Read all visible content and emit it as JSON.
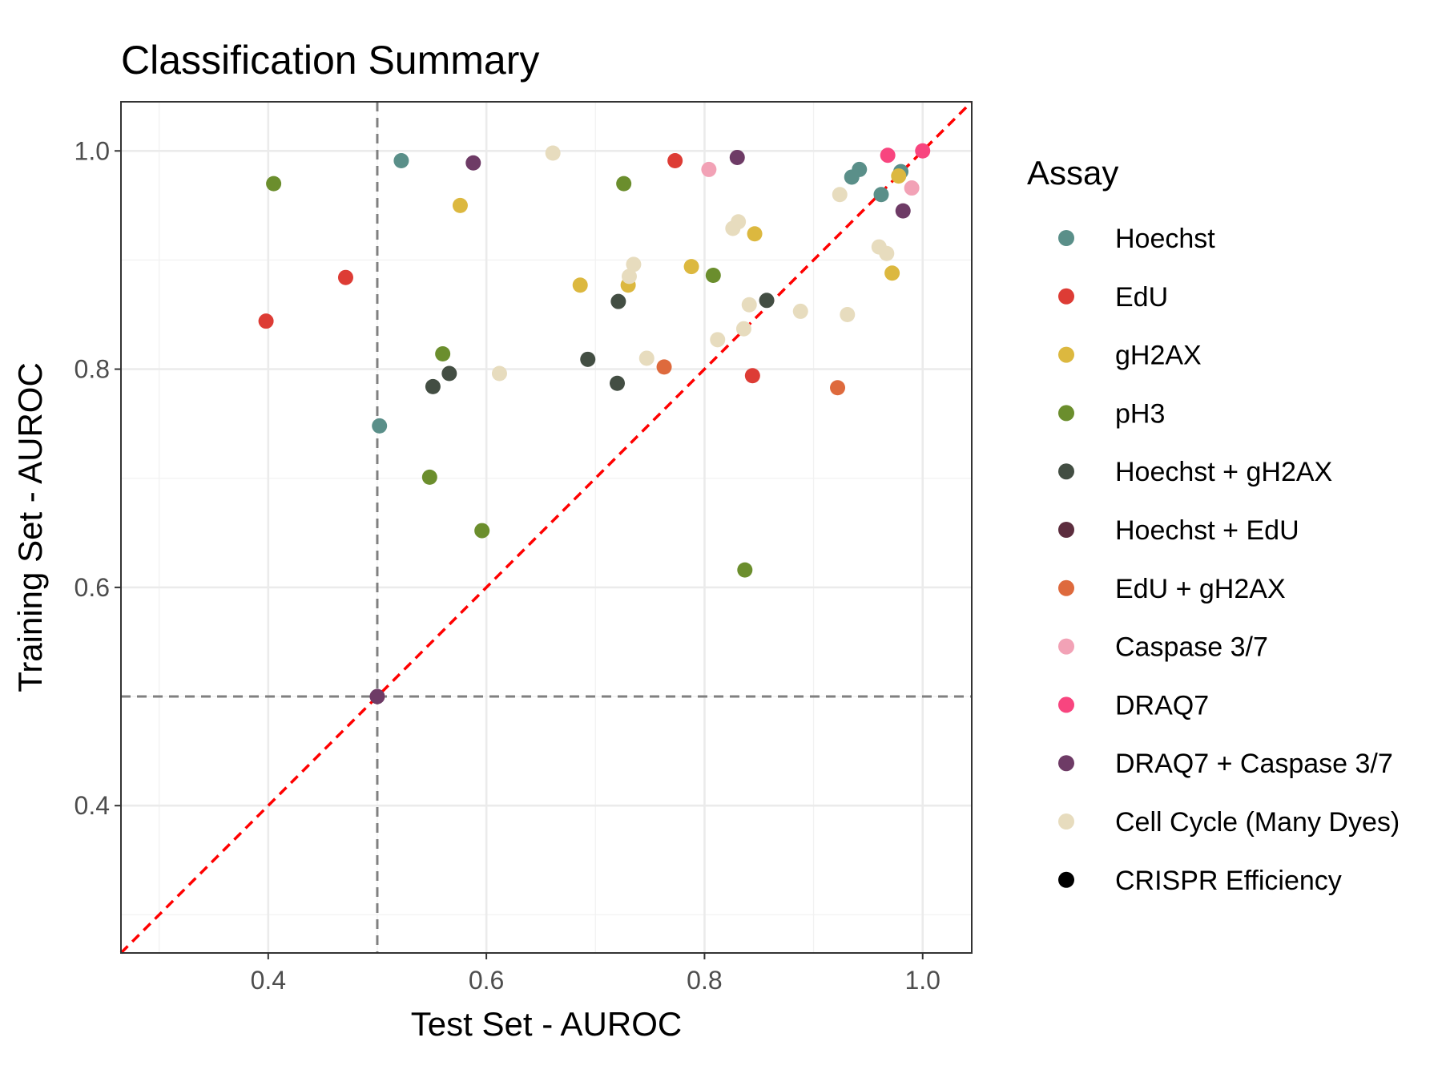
{
  "chart_data": {
    "type": "scatter",
    "title": "Classification Summary",
    "xlabel": "Test Set - AUROC",
    "ylabel": "Training Set - AUROC",
    "xlim": [
      0.265,
      1.045
    ],
    "ylim": [
      0.265,
      1.045
    ],
    "xticks": [
      0.4,
      0.6,
      0.8,
      1.0
    ],
    "xtick_labels": [
      "0.4",
      "0.6",
      "0.8",
      "1.0"
    ],
    "yticks": [
      0.4,
      0.6,
      0.8,
      1.0
    ],
    "ytick_labels": [
      "0.4",
      "0.6",
      "0.8",
      "1.0"
    ],
    "grid": true,
    "reference_lines": {
      "vertical_x": 0.5,
      "horizontal_y": 0.5,
      "diagonal": "y = x"
    },
    "legend": {
      "title": "Assay",
      "position": "right"
    },
    "series": [
      {
        "name": "Hoechst",
        "color": "#5a8f89",
        "points": [
          [
            0.522,
            0.991
          ],
          [
            0.502,
            0.748
          ],
          [
            0.935,
            0.976
          ],
          [
            0.942,
            0.983
          ],
          [
            0.962,
            0.96
          ],
          [
            0.98,
            0.981
          ]
        ]
      },
      {
        "name": "EdU",
        "color": "#dd3c35",
        "points": [
          [
            0.398,
            0.844
          ],
          [
            0.471,
            0.884
          ],
          [
            0.773,
            0.991
          ],
          [
            0.844,
            0.794
          ]
        ]
      },
      {
        "name": "gH2AX",
        "color": "#dcb83f",
        "points": [
          [
            0.576,
            0.95
          ],
          [
            0.686,
            0.877
          ],
          [
            0.73,
            0.877
          ],
          [
            0.788,
            0.894
          ],
          [
            0.846,
            0.924
          ],
          [
            0.972,
            0.888
          ],
          [
            0.978,
            0.977
          ]
        ]
      },
      {
        "name": "pH3",
        "color": "#6b8e2d",
        "points": [
          [
            0.405,
            0.97
          ],
          [
            0.56,
            0.814
          ],
          [
            0.548,
            0.701
          ],
          [
            0.596,
            0.652
          ],
          [
            0.726,
            0.97
          ],
          [
            0.808,
            0.886
          ],
          [
            0.837,
            0.616
          ]
        ]
      },
      {
        "name": "Hoechst + gH2AX",
        "color": "#434e43",
        "points": [
          [
            0.551,
            0.784
          ],
          [
            0.566,
            0.796
          ],
          [
            0.693,
            0.809
          ],
          [
            0.72,
            0.787
          ],
          [
            0.721,
            0.862
          ],
          [
            0.857,
            0.863
          ]
        ]
      },
      {
        "name": "Hoechst + EdU",
        "color": "#5c2d3e",
        "points": []
      },
      {
        "name": "EdU + gH2AX",
        "color": "#de6a3d",
        "points": [
          [
            0.763,
            0.802
          ],
          [
            0.922,
            0.783
          ]
        ]
      },
      {
        "name": "Caspase 3/7",
        "color": "#f2a2b6",
        "points": [
          [
            0.804,
            0.983
          ],
          [
            0.99,
            0.966
          ]
        ]
      },
      {
        "name": "DRAQ7",
        "color": "#f8457f",
        "points": [
          [
            0.968,
            0.996
          ],
          [
            1.0,
            1.0
          ]
        ]
      },
      {
        "name": "DRAQ7 + Caspase 3/7",
        "color": "#6e3b66",
        "points": [
          [
            0.588,
            0.989
          ],
          [
            0.83,
            0.994
          ],
          [
            0.982,
            0.945
          ],
          [
            0.5,
            0.5
          ]
        ]
      },
      {
        "name": "Cell Cycle (Many Dyes)",
        "color": "#e7dcbe",
        "points": [
          [
            0.661,
            0.998
          ],
          [
            0.612,
            0.796
          ],
          [
            0.731,
            0.885
          ],
          [
            0.735,
            0.896
          ],
          [
            0.747,
            0.81
          ],
          [
            0.812,
            0.827
          ],
          [
            0.826,
            0.929
          ],
          [
            0.831,
            0.935
          ],
          [
            0.836,
            0.837
          ],
          [
            0.841,
            0.859
          ],
          [
            0.888,
            0.853
          ],
          [
            0.924,
            0.96
          ],
          [
            0.931,
            0.85
          ],
          [
            0.96,
            0.912
          ],
          [
            0.967,
            0.906
          ]
        ]
      },
      {
        "name": "CRISPR Efficiency",
        "color": "#000000",
        "points": []
      }
    ]
  }
}
